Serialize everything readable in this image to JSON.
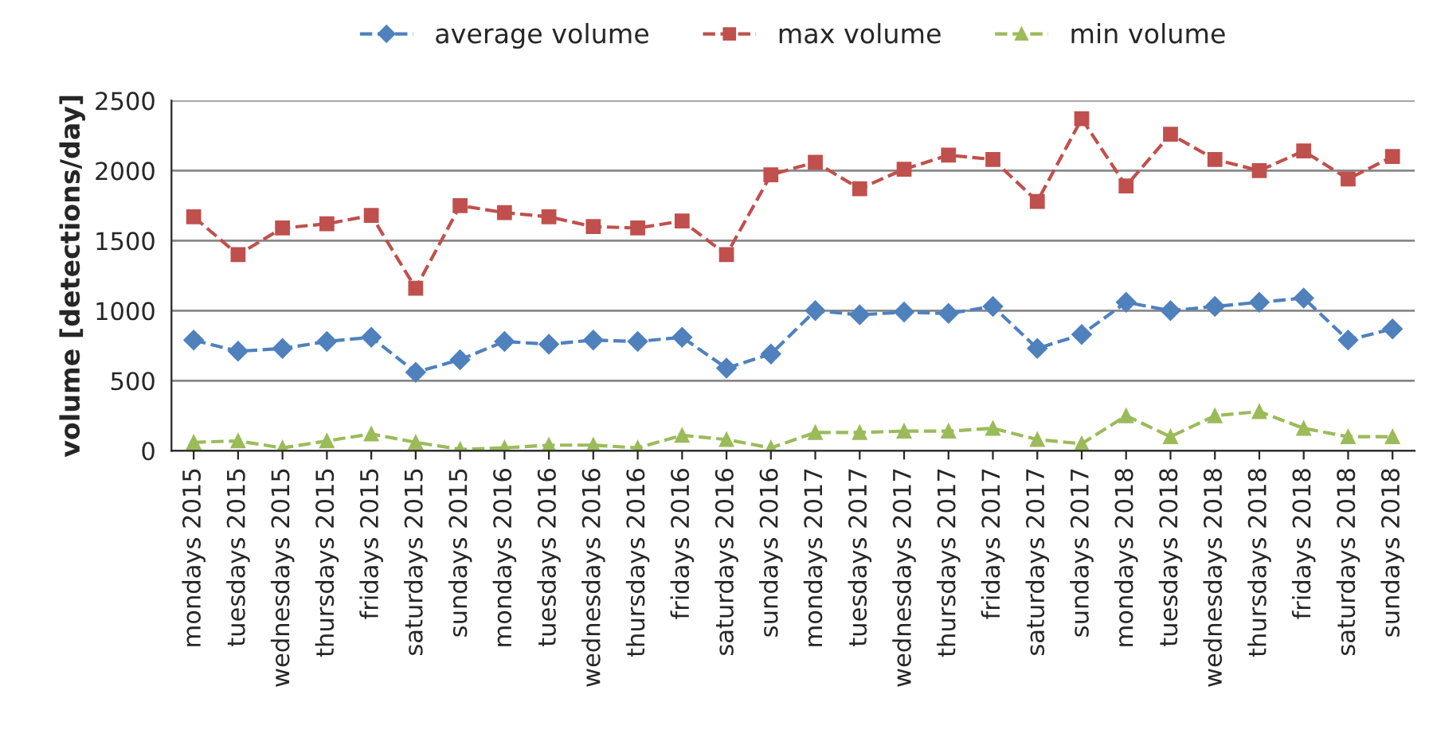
{
  "chart_data": {
    "type": "line",
    "ylabel": "volume [detections/day]",
    "categories": [
      "mondays 2015",
      "tuesdays 2015",
      "wednesdays 2015",
      "thursdays 2015",
      "fridays 2015",
      "saturdays 2015",
      "sundays 2015",
      "mondays 2016",
      "tuesdays 2016",
      "wednesdays 2016",
      "thursdays 2016",
      "fridays 2016",
      "saturdays 2016",
      "sundays 2016",
      "mondays 2017",
      "tuesdays 2017",
      "wednesdays 2017",
      "thursdays 2017",
      "fridays 2017",
      "saturdays 2017",
      "sundays 2017",
      "mondays 2018",
      "tuesdays 2018",
      "wednesdays 2018",
      "thursdays 2018",
      "fridays 2018",
      "saturdays 2018",
      "sundays 2018"
    ],
    "series": [
      {
        "name": "average volume",
        "color": "#4f81bd",
        "marker": "diamond",
        "values": [
          790,
          710,
          730,
          780,
          810,
          560,
          650,
          780,
          760,
          790,
          780,
          810,
          590,
          690,
          1000,
          970,
          990,
          980,
          1030,
          730,
          830,
          1060,
          1000,
          1030,
          1060,
          1090,
          790,
          870
        ]
      },
      {
        "name": "max volume",
        "color": "#c0504d",
        "marker": "square",
        "values": [
          1670,
          1400,
          1590,
          1620,
          1680,
          1160,
          1750,
          1700,
          1670,
          1600,
          1590,
          1640,
          1400,
          1970,
          2060,
          1870,
          2010,
          2110,
          2080,
          1780,
          2370,
          1890,
          2260,
          2080,
          2000,
          2140,
          1940,
          2100
        ]
      },
      {
        "name": "min volume",
        "color": "#9bbb59",
        "marker": "triangle",
        "values": [
          60,
          70,
          20,
          70,
          120,
          60,
          10,
          20,
          40,
          40,
          20,
          110,
          80,
          20,
          130,
          130,
          140,
          140,
          160,
          80,
          50,
          250,
          100,
          250,
          280,
          160,
          100,
          100
        ]
      }
    ],
    "ylim": [
      0,
      2500
    ],
    "yticks": [
      0,
      500,
      1000,
      1500,
      2000,
      2500
    ],
    "grid": "y",
    "legend": "top",
    "line_style": "dashed"
  }
}
